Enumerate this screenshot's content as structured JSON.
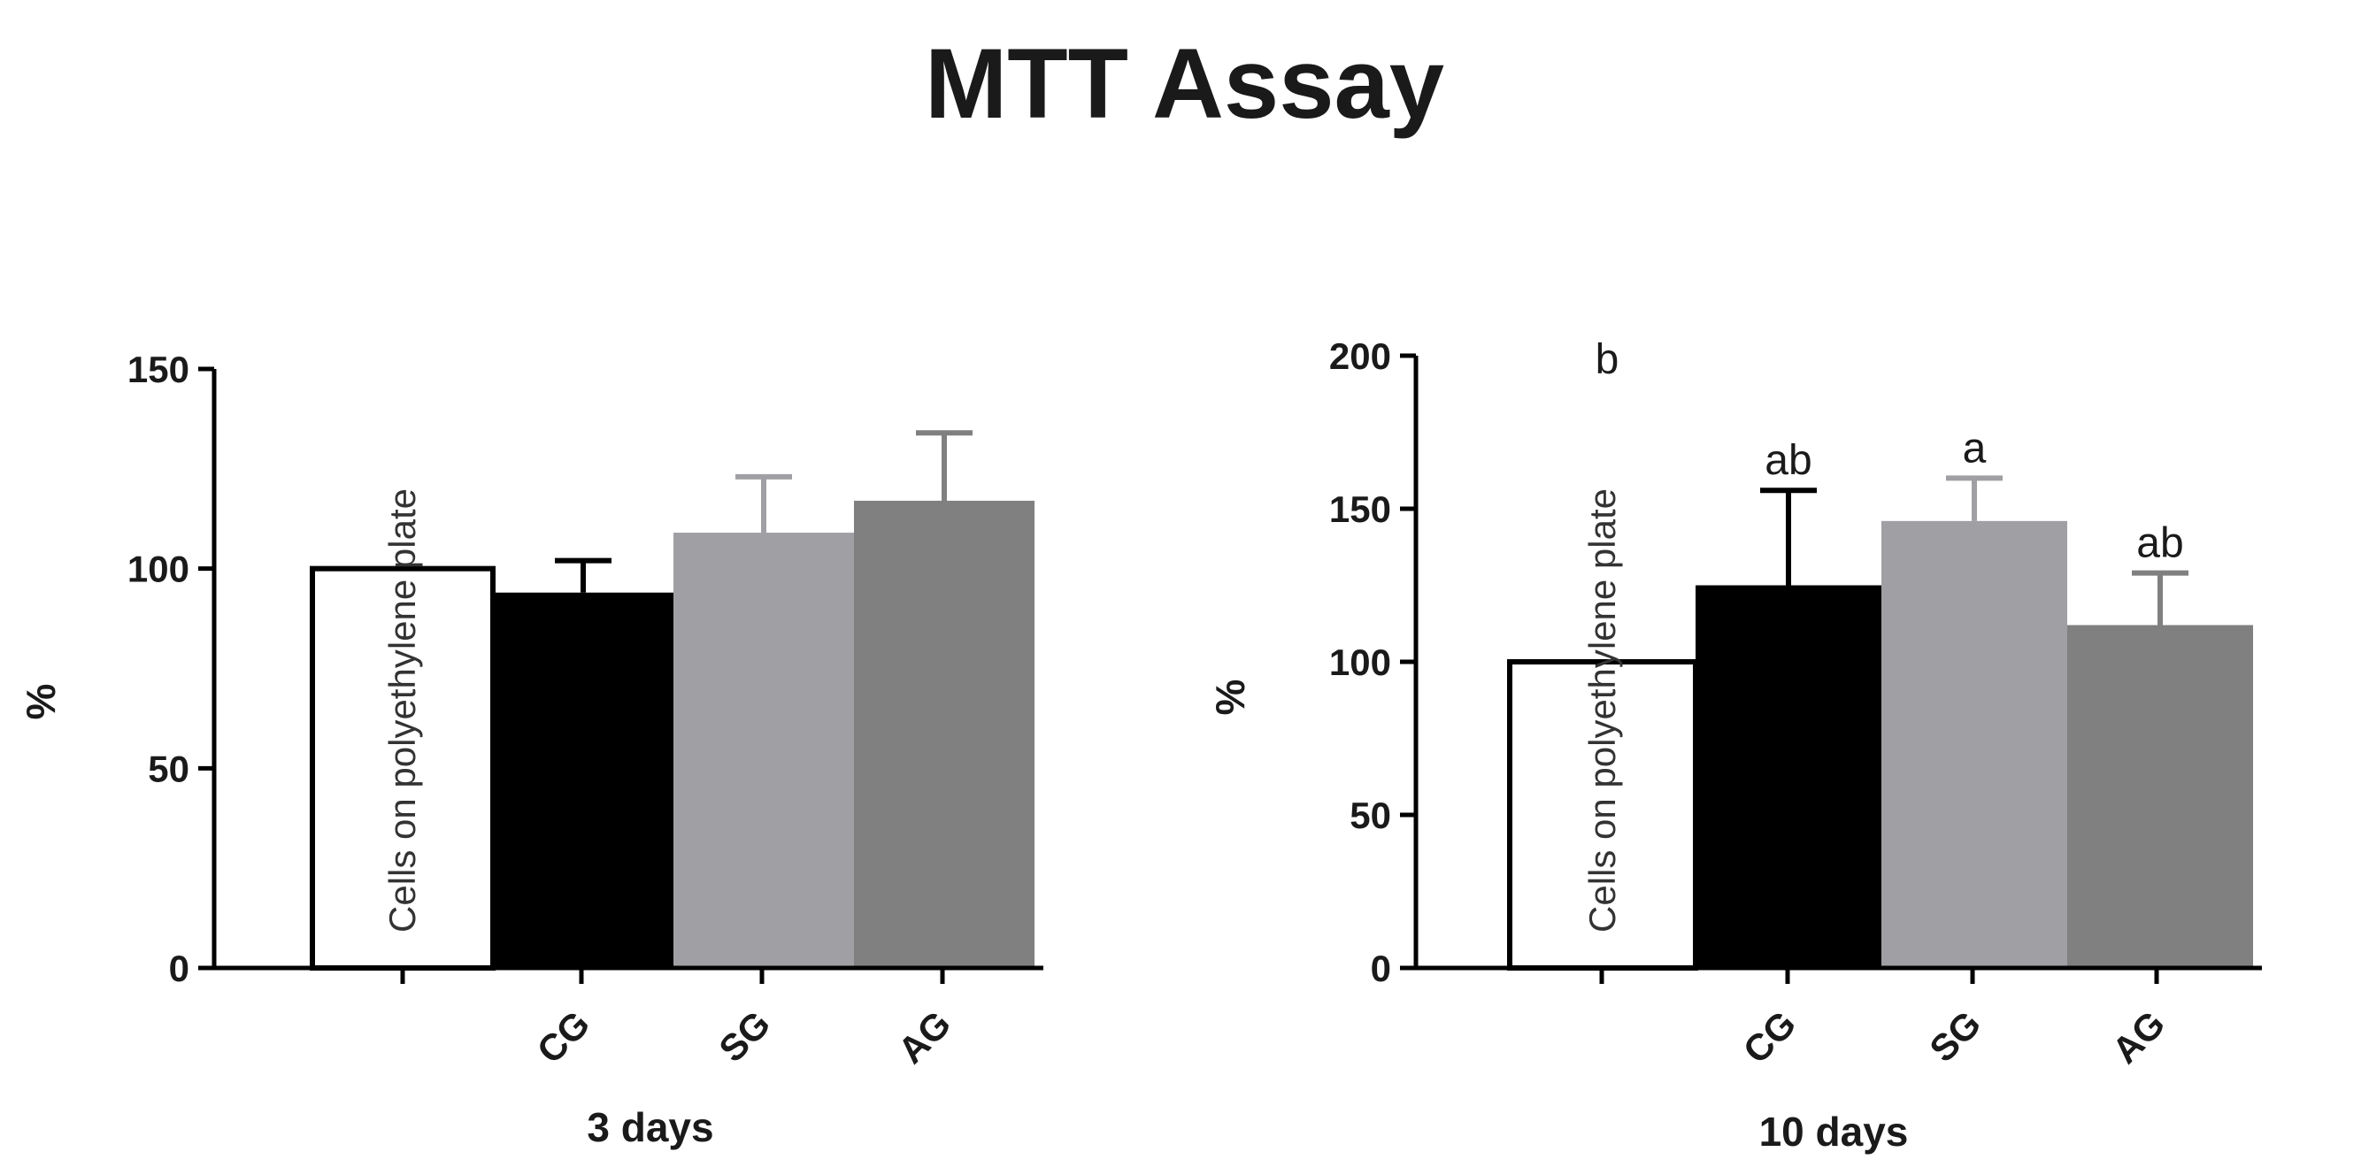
{
  "title": "MTT Assay",
  "chart_data": [
    {
      "type": "bar",
      "xlabel": "3 days",
      "ylabel": "%",
      "ylim": [
        0,
        150
      ],
      "yticks": [
        0,
        50,
        100,
        150
      ],
      "categories": [
        "",
        "CG",
        "SG",
        "AG"
      ],
      "values": [
        100,
        94,
        109,
        117
      ],
      "errors": [
        0,
        8,
        14,
        17
      ],
      "colors": [
        "#ffffff",
        "#000000",
        "#a0a0a4",
        "#808080"
      ],
      "bar_text": [
        "Cells on polyethylene plate",
        "",
        "",
        ""
      ],
      "annotations": [
        "",
        "",
        "",
        ""
      ]
    },
    {
      "type": "bar",
      "xlabel": "10 days",
      "ylabel": "%",
      "ylim": [
        0,
        200
      ],
      "yticks": [
        0,
        50,
        100,
        150,
        200
      ],
      "categories": [
        "",
        "CG",
        "SG",
        "AG"
      ],
      "values": [
        100,
        125,
        146,
        112
      ],
      "errors": [
        0,
        31,
        14,
        17
      ],
      "colors": [
        "#ffffff",
        "#000000",
        "#a0a0a4",
        "#808080"
      ],
      "bar_text": [
        "Cells on polyethylene plate",
        "",
        "",
        ""
      ],
      "annotations": [
        "b",
        "ab",
        "a",
        "ab"
      ]
    }
  ]
}
